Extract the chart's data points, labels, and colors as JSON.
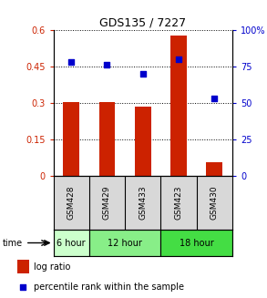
{
  "title": "GDS135 / 7227",
  "samples": [
    "GSM428",
    "GSM429",
    "GSM433",
    "GSM423",
    "GSM430"
  ],
  "log_ratio": [
    0.302,
    0.302,
    0.284,
    0.576,
    0.055
  ],
  "percentile_rank": [
    78,
    76,
    70,
    80,
    53
  ],
  "bar_color": "#cc2200",
  "dot_color": "#0000cc",
  "left_ylim": [
    0,
    0.6
  ],
  "right_ylim": [
    0,
    100
  ],
  "left_yticks": [
    0,
    0.15,
    0.3,
    0.45,
    0.6
  ],
  "left_yticklabels": [
    "0",
    "0.15",
    "0.3",
    "0.45",
    "0.6"
  ],
  "right_yticks": [
    0,
    25,
    50,
    75,
    100
  ],
  "right_yticklabels": [
    "0",
    "25",
    "50",
    "75",
    "100%"
  ],
  "time_groups": [
    {
      "label": "6 hour",
      "samples": [
        "GSM428"
      ],
      "color": "#ccffcc"
    },
    {
      "label": "12 hour",
      "samples": [
        "GSM429",
        "GSM433"
      ],
      "color": "#88ee88"
    },
    {
      "label": "18 hour",
      "samples": [
        "GSM423",
        "GSM430"
      ],
      "color": "#44dd44"
    }
  ],
  "legend_bar_label": "log ratio",
  "legend_dot_label": "percentile rank within the sample",
  "time_label": "time",
  "bg_color": "#ffffff",
  "plot_bg_color": "#ffffff",
  "sample_box_color": "#d8d8d8"
}
